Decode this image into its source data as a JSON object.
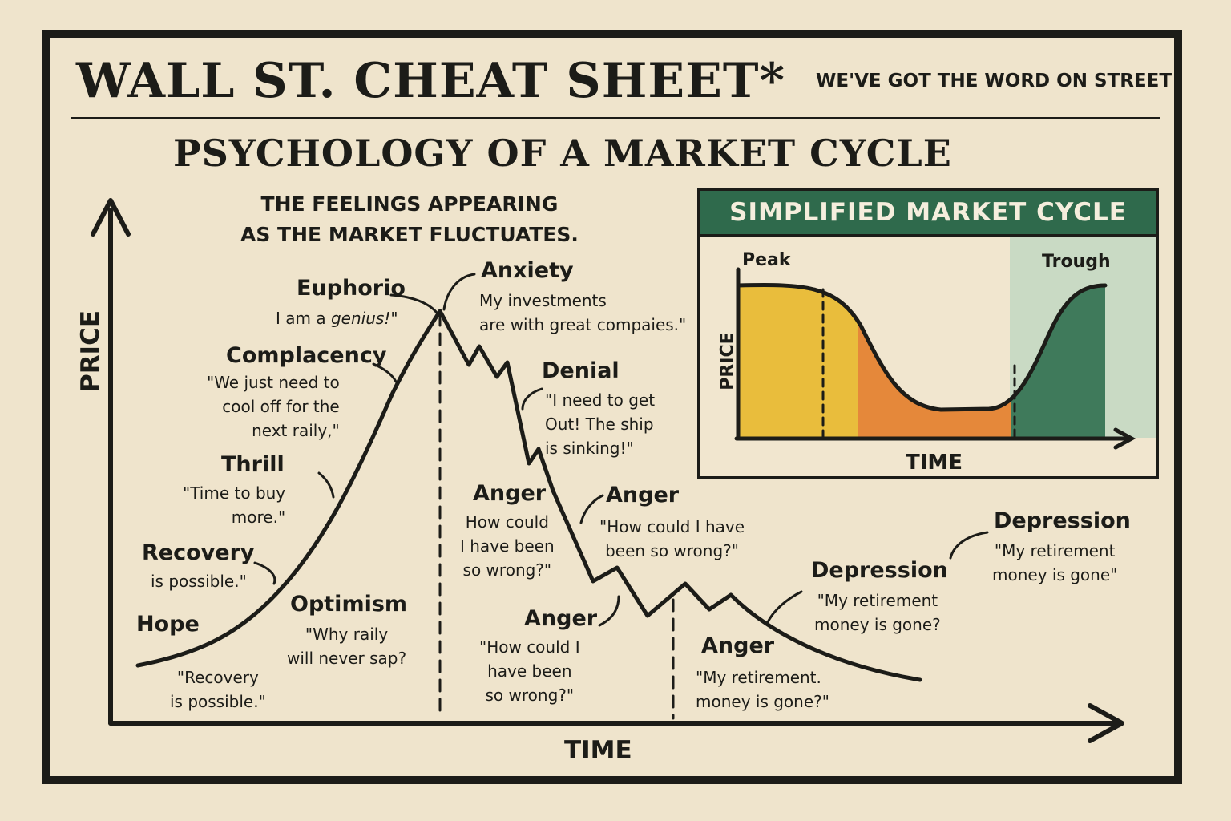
{
  "header": {
    "title": "WALL ST. CHEAT SHEET*",
    "tagline": "WE'VE GOT THE WORD ON STREET",
    "subtitle": "PSYCHOLOGY OF A MARKET CYCLE",
    "intro": "THE FEELINGS APPEARING\nAS THE MARKET FLUCTUATES."
  },
  "main_chart": {
    "y_axis_label": "PRICE",
    "x_axis_label": "TIME",
    "stages": [
      {
        "name": "Hope",
        "quote": "\"Recovery\nis possible.\""
      },
      {
        "name": "Recovery",
        "quote": "is possible.\""
      },
      {
        "name": "Optimism",
        "quote": "\"Why raily\nwill never sap?"
      },
      {
        "name": "Thrill",
        "quote": "\"Time to buy\nmore.\""
      },
      {
        "name": "Complacency",
        "quote": "\"We just need to\ncool off for the\nnext raily,\""
      },
      {
        "name": "Euphorio",
        "quote_prefix": "I am a ",
        "quote_em": "genius!",
        "quote_suffix": "\""
      },
      {
        "name": "Anxiety",
        "quote": "My investments\nare with great compaies.\""
      },
      {
        "name": "Denial",
        "quote": "\"I need to get\nOut! The ship\nis sinking!\""
      },
      {
        "name": "Anger",
        "quote": "How could\nI have been\nso wrong?\""
      },
      {
        "name": "Anger",
        "quote": "\"How could I have\nbeen so wrong?\""
      },
      {
        "name": "Anger",
        "quote": "\"How could I\nhave been\nso wrong?\""
      },
      {
        "name": "Anger",
        "quote": "\"My retirement.\nmoney is gone?\""
      },
      {
        "name": "Depression",
        "quote": "\"My retirement\nmoney is gone?"
      },
      {
        "name": "Depression",
        "quote": "\"My retirement\nmoney is gone\""
      }
    ]
  },
  "inset": {
    "title": "SIMPLIFIED MARKET CYCLE",
    "y_axis_label": "PRICE",
    "x_axis_label": "TIME",
    "peak_label": "Peak",
    "trough_label": "Trough",
    "colors": {
      "yellow": "#e9bd3c",
      "orange": "#e5883a",
      "green": "#3f7a5b",
      "pale_green": "#c9dac4",
      "header": "#2f6a4c"
    }
  }
}
